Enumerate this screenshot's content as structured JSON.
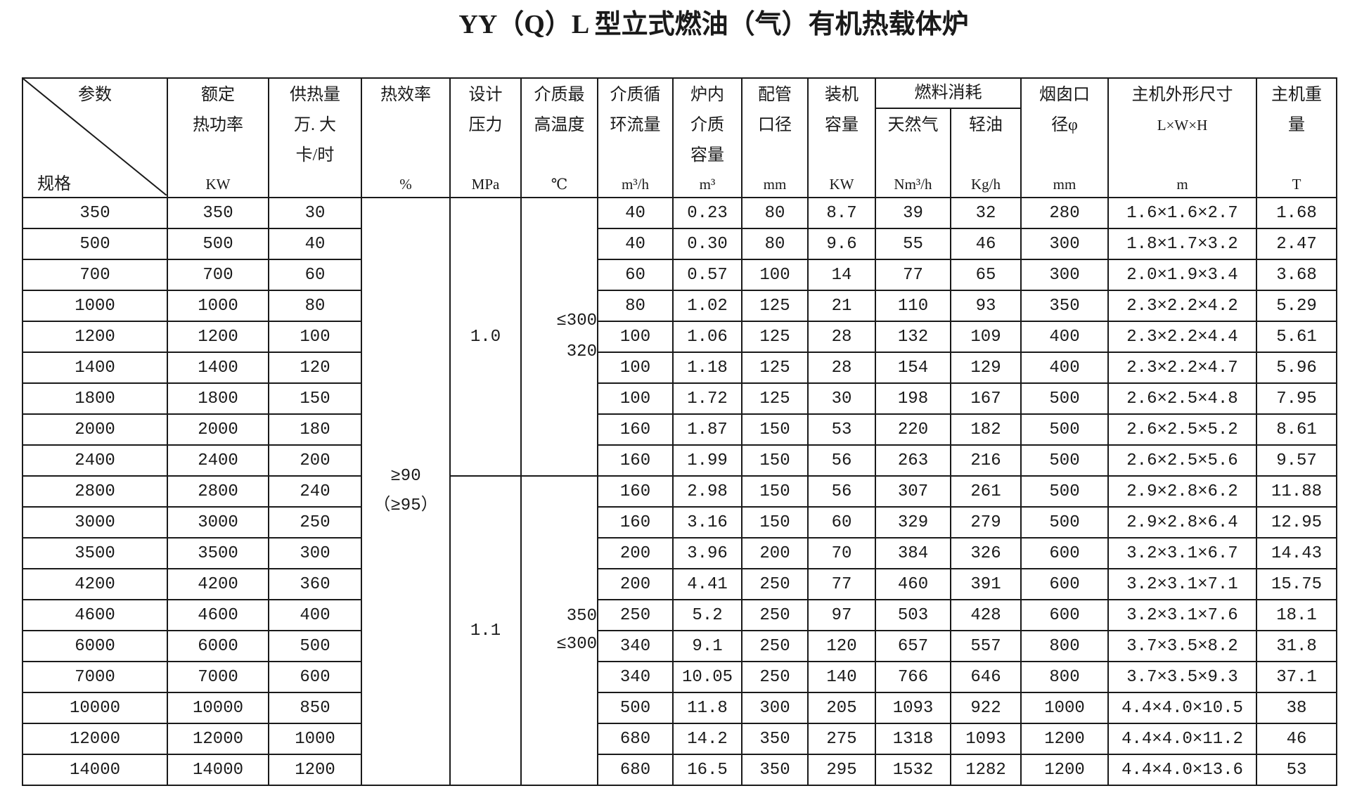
{
  "title": "YY（Q）L 型立式燃油（气）有机热载体炉",
  "header": {
    "corner_top": "参数",
    "corner_bottom": "规格",
    "rated_power": {
      "lines": [
        "额定",
        "热功率"
      ],
      "unit": "KW"
    },
    "heat_supply": {
      "lines": [
        "供热量",
        "万. 大",
        "卡/时"
      ]
    },
    "efficiency": {
      "lines": [
        "热效率"
      ],
      "unit": "%"
    },
    "design_pressure": {
      "lines": [
        "设计",
        "压力"
      ],
      "unit": "MPa"
    },
    "max_temp": {
      "lines": [
        "介质最",
        "高温度"
      ],
      "unit": "℃"
    },
    "flow": {
      "lines": [
        "介质循",
        "环流量"
      ],
      "unit": "m³/h"
    },
    "volume": {
      "lines": [
        "炉内",
        "介质",
        "容量"
      ],
      "unit": "m³"
    },
    "pipe": {
      "lines": [
        "配管",
        "口径"
      ],
      "unit": "mm"
    },
    "installed": {
      "lines": [
        "装机",
        "容量"
      ],
      "unit": "KW"
    },
    "fuel_group": "燃料消耗",
    "gas": {
      "lines": [
        "天然气"
      ],
      "unit": "Nm³/h"
    },
    "oil": {
      "lines": [
        "轻油"
      ],
      "unit": "Kg/h"
    },
    "chimney": {
      "lines": [
        "烟囱口",
        "径φ"
      ],
      "unit": "mm"
    },
    "dimensions": {
      "lines": [
        "主机外形尺寸",
        "L×W×H"
      ],
      "unit": "m"
    },
    "weight": {
      "lines": [
        "主机重",
        "量"
      ],
      "unit": "T"
    }
  },
  "merged": {
    "efficiency": [
      "≥90",
      "（≥95）"
    ],
    "pressure": [
      "1.0",
      "1.1"
    ],
    "max_temp": [
      [
        "≤300",
        "320"
      ],
      [
        "350",
        "≤300"
      ]
    ]
  },
  "rows": [
    {
      "spec": "350",
      "power_kw": "350",
      "heat_supply": "30",
      "flow": "40",
      "volume": "0.23",
      "pipe": "80",
      "installed_kw": "8.7",
      "gas": "39",
      "oil": "32",
      "chimney": "280",
      "dimensions": "1.6×1.6×2.7",
      "weight": "1.68"
    },
    {
      "spec": "500",
      "power_kw": "500",
      "heat_supply": "40",
      "flow": "40",
      "volume": "0.30",
      "pipe": "80",
      "installed_kw": "9.6",
      "gas": "55",
      "oil": "46",
      "chimney": "300",
      "dimensions": "1.8×1.7×3.2",
      "weight": "2.47"
    },
    {
      "spec": "700",
      "power_kw": "700",
      "heat_supply": "60",
      "flow": "60",
      "volume": "0.57",
      "pipe": "100",
      "installed_kw": "14",
      "gas": "77",
      "oil": "65",
      "chimney": "300",
      "dimensions": "2.0×1.9×3.4",
      "weight": "3.68"
    },
    {
      "spec": "1000",
      "power_kw": "1000",
      "heat_supply": "80",
      "flow": "80",
      "volume": "1.02",
      "pipe": "125",
      "installed_kw": "21",
      "gas": "110",
      "oil": "93",
      "chimney": "350",
      "dimensions": "2.3×2.2×4.2",
      "weight": "5.29"
    },
    {
      "spec": "1200",
      "power_kw": "1200",
      "heat_supply": "100",
      "flow": "100",
      "volume": "1.06",
      "pipe": "125",
      "installed_kw": "28",
      "gas": "132",
      "oil": "109",
      "chimney": "400",
      "dimensions": "2.3×2.2×4.4",
      "weight": "5.61"
    },
    {
      "spec": "1400",
      "power_kw": "1400",
      "heat_supply": "120",
      "flow": "100",
      "volume": "1.18",
      "pipe": "125",
      "installed_kw": "28",
      "gas": "154",
      "oil": "129",
      "chimney": "400",
      "dimensions": "2.3×2.2×4.7",
      "weight": "5.96"
    },
    {
      "spec": "1800",
      "power_kw": "1800",
      "heat_supply": "150",
      "flow": "100",
      "volume": "1.72",
      "pipe": "125",
      "installed_kw": "30",
      "gas": "198",
      "oil": "167",
      "chimney": "500",
      "dimensions": "2.6×2.5×4.8",
      "weight": "7.95"
    },
    {
      "spec": "2000",
      "power_kw": "2000",
      "heat_supply": "180",
      "flow": "160",
      "volume": "1.87",
      "pipe": "150",
      "installed_kw": "53",
      "gas": "220",
      "oil": "182",
      "chimney": "500",
      "dimensions": "2.6×2.5×5.2",
      "weight": "8.61"
    },
    {
      "spec": "2400",
      "power_kw": "2400",
      "heat_supply": "200",
      "flow": "160",
      "volume": "1.99",
      "pipe": "150",
      "installed_kw": "56",
      "gas": "263",
      "oil": "216",
      "chimney": "500",
      "dimensions": "2.6×2.5×5.6",
      "weight": "9.57"
    },
    {
      "spec": "2800",
      "power_kw": "2800",
      "heat_supply": "240",
      "flow": "160",
      "volume": "2.98",
      "pipe": "150",
      "installed_kw": "56",
      "gas": "307",
      "oil": "261",
      "chimney": "500",
      "dimensions": "2.9×2.8×6.2",
      "weight": "11.88"
    },
    {
      "spec": "3000",
      "power_kw": "3000",
      "heat_supply": "250",
      "flow": "160",
      "volume": "3.16",
      "pipe": "150",
      "installed_kw": "60",
      "gas": "329",
      "oil": "279",
      "chimney": "500",
      "dimensions": "2.9×2.8×6.4",
      "weight": "12.95"
    },
    {
      "spec": "3500",
      "power_kw": "3500",
      "heat_supply": "300",
      "flow": "200",
      "volume": "3.96",
      "pipe": "200",
      "installed_kw": "70",
      "gas": "384",
      "oil": "326",
      "chimney": "600",
      "dimensions": "3.2×3.1×6.7",
      "weight": "14.43"
    },
    {
      "spec": "4200",
      "power_kw": "4200",
      "heat_supply": "360",
      "flow": "200",
      "volume": "4.41",
      "pipe": "250",
      "installed_kw": "77",
      "gas": "460",
      "oil": "391",
      "chimney": "600",
      "dimensions": "3.2×3.1×7.1",
      "weight": "15.75"
    },
    {
      "spec": "4600",
      "power_kw": "4600",
      "heat_supply": "400",
      "flow": "250",
      "volume": "5.2",
      "pipe": "250",
      "installed_kw": "97",
      "gas": "503",
      "oil": "428",
      "chimney": "600",
      "dimensions": "3.2×3.1×7.6",
      "weight": "18.1"
    },
    {
      "spec": "6000",
      "power_kw": "6000",
      "heat_supply": "500",
      "flow": "340",
      "volume": "9.1",
      "pipe": "250",
      "installed_kw": "120",
      "gas": "657",
      "oil": "557",
      "chimney": "800",
      "dimensions": "3.7×3.5×8.2",
      "weight": "31.8"
    },
    {
      "spec": "7000",
      "power_kw": "7000",
      "heat_supply": "600",
      "flow": "340",
      "volume": "10.05",
      "pipe": "250",
      "installed_kw": "140",
      "gas": "766",
      "oil": "646",
      "chimney": "800",
      "dimensions": "3.7×3.5×9.3",
      "weight": "37.1"
    },
    {
      "spec": "10000",
      "power_kw": "10000",
      "heat_supply": "850",
      "flow": "500",
      "volume": "11.8",
      "pipe": "300",
      "installed_kw": "205",
      "gas": "1093",
      "oil": "922",
      "chimney": "1000",
      "dimensions": "4.4×4.0×10.5",
      "weight": "38"
    },
    {
      "spec": "12000",
      "power_kw": "12000",
      "heat_supply": "1000",
      "flow": "680",
      "volume": "14.2",
      "pipe": "350",
      "installed_kw": "275",
      "gas": "1318",
      "oil": "1093",
      "chimney": "1200",
      "dimensions": "4.4×4.0×11.2",
      "weight": "46"
    },
    {
      "spec": "14000",
      "power_kw": "14000",
      "heat_supply": "1200",
      "flow": "680",
      "volume": "16.5",
      "pipe": "350",
      "installed_kw": "295",
      "gas": "1532",
      "oil": "1282",
      "chimney": "1200",
      "dimensions": "4.4×4.0×13.6",
      "weight": "53"
    }
  ]
}
